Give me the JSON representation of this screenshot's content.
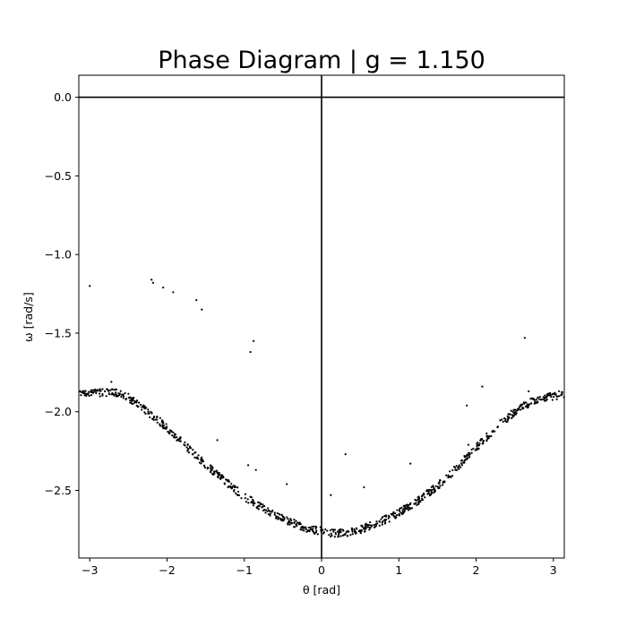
{
  "chart_data": {
    "type": "scatter",
    "title": "Phase Diagram | g = 1.150",
    "xlabel": "θ [rad]",
    "ylabel": "ω [rad/s]",
    "xlim": [
      -3.1416,
      3.1416
    ],
    "ylim": [
      -2.93,
      0.14
    ],
    "x_ticks": [
      -3,
      -2,
      -1,
      0,
      1,
      2,
      3
    ],
    "x_tick_labels": [
      "−3",
      "−2",
      "−1",
      "0",
      "1",
      "2",
      "3"
    ],
    "y_ticks": [
      0.0,
      -0.5,
      -1.0,
      -1.5,
      -2.0,
      -2.5
    ],
    "y_tick_labels": [
      "0.0",
      "−0.5",
      "−1.0",
      "−1.5",
      "−2.0",
      "−2.5"
    ],
    "reference_lines": {
      "horizontal_y": 0.0,
      "vertical_x": 0.0
    },
    "grid": false,
    "legend": "none",
    "marker_color": "#000000",
    "line_color": "#000000",
    "main_curve": {
      "description_model": "omega ≈ -2.33 + 0.46·cos(theta) over theta ∈ [-π, π]",
      "points": [
        [
          -3.1,
          -1.87
        ],
        [
          -3.0,
          -1.88
        ],
        [
          -2.9,
          -1.88
        ],
        [
          -2.8,
          -1.88
        ],
        [
          -2.7,
          -1.87
        ],
        [
          -2.6,
          -1.89
        ],
        [
          -2.5,
          -1.91
        ],
        [
          -2.4,
          -1.94
        ],
        [
          -2.3,
          -1.98
        ],
        [
          -2.2,
          -2.02
        ],
        [
          -2.1,
          -2.06
        ],
        [
          -2.0,
          -2.1
        ],
        [
          -1.9,
          -2.15
        ],
        [
          -1.8,
          -2.2
        ],
        [
          -1.7,
          -2.24
        ],
        [
          -1.6,
          -2.29
        ],
        [
          -1.5,
          -2.34
        ],
        [
          -1.4,
          -2.38
        ],
        [
          -1.3,
          -2.42
        ],
        [
          -1.2,
          -2.46
        ],
        [
          -1.1,
          -2.5
        ],
        [
          -1.0,
          -2.54
        ],
        [
          -0.9,
          -2.57
        ],
        [
          -0.8,
          -2.6
        ],
        [
          -0.7,
          -2.63
        ],
        [
          -0.6,
          -2.66
        ],
        [
          -0.5,
          -2.68
        ],
        [
          -0.4,
          -2.7
        ],
        [
          -0.3,
          -2.72
        ],
        [
          -0.2,
          -2.74
        ],
        [
          -0.1,
          -2.75
        ],
        [
          0.0,
          -2.76
        ],
        [
          0.1,
          -2.77
        ],
        [
          0.2,
          -2.77
        ],
        [
          0.3,
          -2.77
        ],
        [
          0.4,
          -2.76
        ],
        [
          0.5,
          -2.75
        ],
        [
          0.6,
          -2.73
        ],
        [
          0.7,
          -2.71
        ],
        [
          0.8,
          -2.69
        ],
        [
          0.9,
          -2.67
        ],
        [
          1.0,
          -2.64
        ],
        [
          1.1,
          -2.61
        ],
        [
          1.2,
          -2.58
        ],
        [
          1.3,
          -2.55
        ],
        [
          1.4,
          -2.51
        ],
        [
          1.5,
          -2.47
        ],
        [
          1.6,
          -2.43
        ],
        [
          1.7,
          -2.38
        ],
        [
          1.8,
          -2.33
        ],
        [
          1.9,
          -2.28
        ],
        [
          2.0,
          -2.23
        ],
        [
          2.1,
          -2.18
        ],
        [
          2.2,
          -2.13
        ],
        [
          2.3,
          -2.08
        ],
        [
          2.4,
          -2.04
        ],
        [
          2.5,
          -2.0
        ],
        [
          2.6,
          -1.97
        ],
        [
          2.7,
          -1.94
        ],
        [
          2.8,
          -1.92
        ],
        [
          2.9,
          -1.91
        ],
        [
          3.0,
          -1.9
        ],
        [
          3.1,
          -1.89
        ]
      ]
    },
    "outliers": [
      [
        -3.0,
        -1.2
      ],
      [
        -2.2,
        -1.16
      ],
      [
        -2.18,
        -1.18
      ],
      [
        -2.05,
        -1.21
      ],
      [
        -1.92,
        -1.24
      ],
      [
        -1.62,
        -1.29
      ],
      [
        -1.55,
        -1.35
      ],
      [
        -0.88,
        -1.55
      ],
      [
        -0.92,
        -1.62
      ],
      [
        -2.72,
        -1.81
      ],
      [
        -1.35,
        -2.18
      ],
      [
        -0.95,
        -2.34
      ],
      [
        -0.85,
        -2.37
      ],
      [
        -0.45,
        -2.46
      ],
      [
        0.12,
        -2.53
      ],
      [
        0.31,
        -2.27
      ],
      [
        0.55,
        -2.48
      ],
      [
        1.15,
        -2.33
      ],
      [
        1.88,
        -1.96
      ],
      [
        2.08,
        -1.84
      ],
      [
        2.63,
        -1.53
      ],
      [
        2.68,
        -1.87
      ],
      [
        1.9,
        -2.21
      ]
    ]
  }
}
